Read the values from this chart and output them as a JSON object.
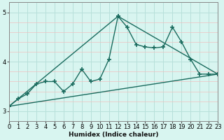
{
  "title": "",
  "xlabel": "Humidex (Indice chaleur)",
  "ylabel": "",
  "bg_color": "#d8f5f0",
  "grid_color": "#b8e0da",
  "line_color": "#1a6b5e",
  "xlim": [
    0,
    23
  ],
  "ylim": [
    2.8,
    5.2
  ],
  "yticks": [
    3,
    4,
    5
  ],
  "xticks": [
    0,
    1,
    2,
    3,
    4,
    5,
    6,
    7,
    8,
    9,
    10,
    11,
    12,
    13,
    14,
    15,
    16,
    17,
    18,
    19,
    20,
    21,
    22,
    23
  ],
  "line1_x": [
    0,
    1,
    2,
    3,
    4,
    5,
    6,
    7,
    8,
    9,
    10,
    11,
    12,
    13,
    14,
    15,
    16,
    17,
    18,
    19,
    20,
    21,
    22,
    23
  ],
  "line1_y": [
    3.1,
    3.25,
    3.35,
    3.55,
    3.6,
    3.6,
    3.4,
    3.55,
    3.85,
    3.6,
    3.65,
    4.05,
    4.92,
    4.7,
    4.35,
    4.3,
    4.28,
    4.3,
    4.7,
    4.4,
    4.05,
    3.75,
    3.75,
    3.75
  ],
  "line2_x": [
    0,
    12,
    23
  ],
  "line2_y": [
    3.1,
    4.92,
    3.75
  ],
  "line3_x": [
    0,
    23
  ],
  "line3_y": [
    3.1,
    3.75
  ],
  "marker": "+",
  "marker_size": 4,
  "line_width": 1.0
}
